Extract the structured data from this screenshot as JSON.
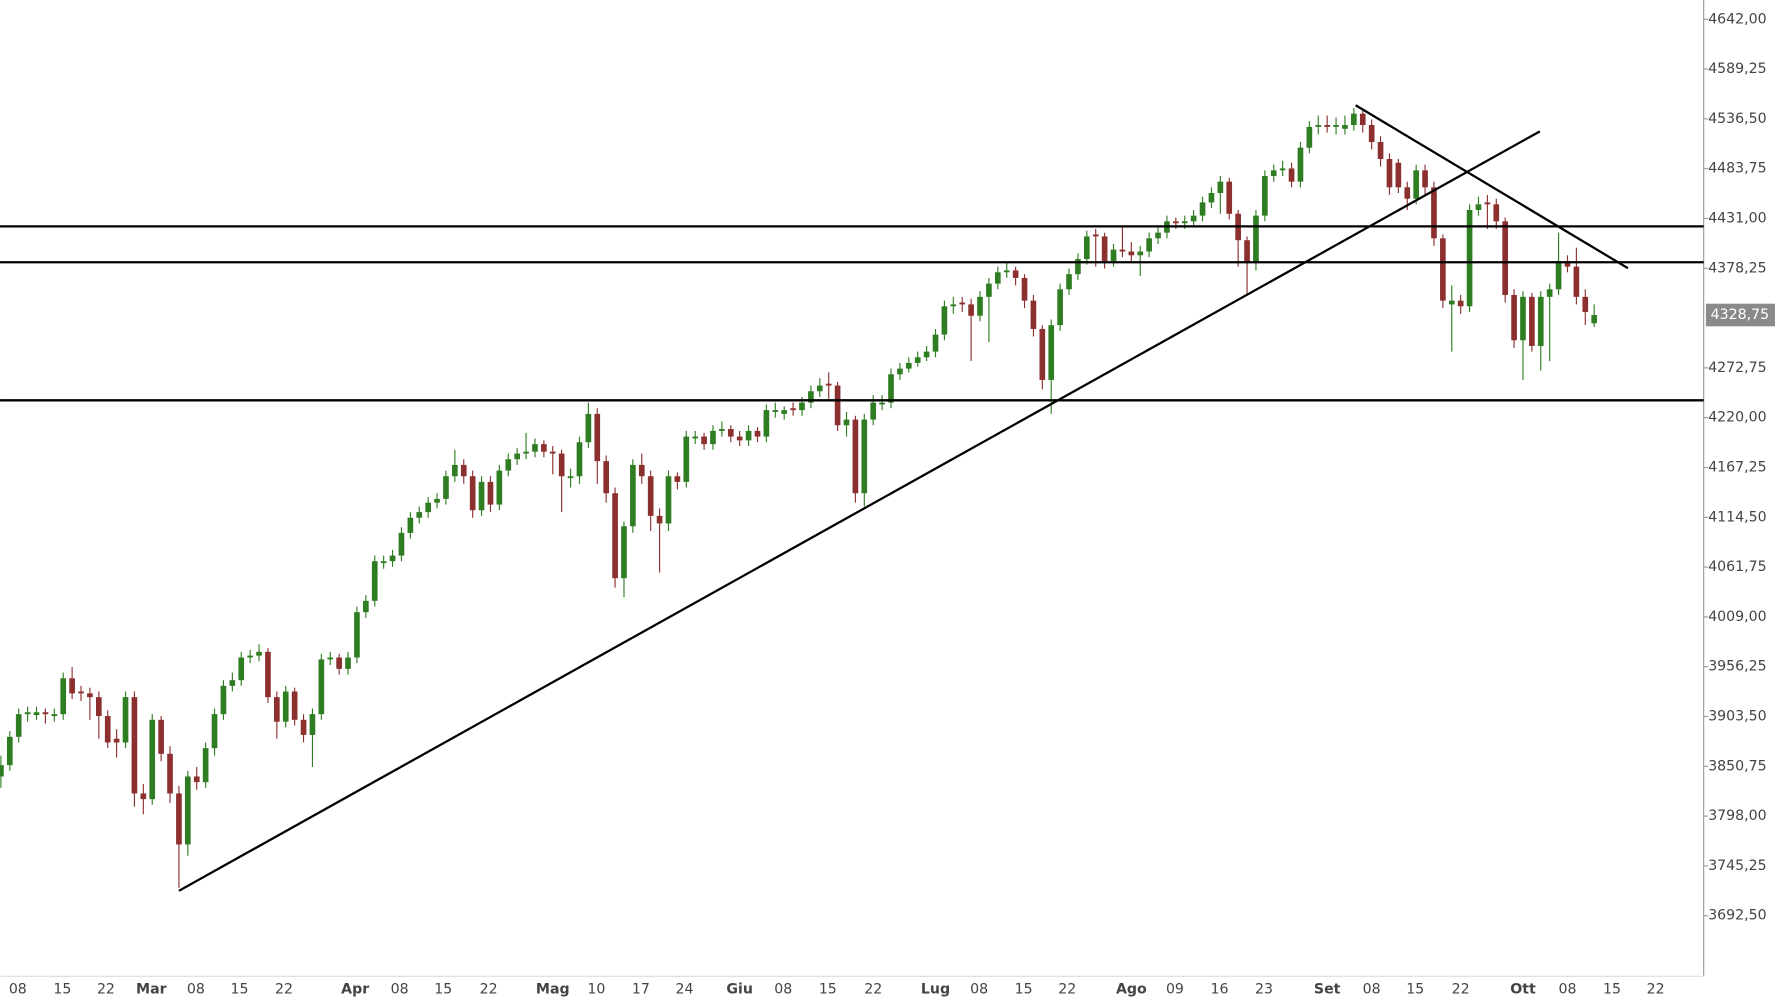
{
  "chart_data": {
    "type": "candlestick",
    "up_color": "#2f7d22",
    "down_color": "#8c2f2f",
    "line_color": "#000000",
    "xlim": [
      -0.1,
      191.3
    ],
    "ylim": [
      3628.9,
      4662.4
    ],
    "yticks": [
      {
        "value": 4642,
        "label": "4642,00"
      },
      {
        "value": 4589.25,
        "label": "4589,25"
      },
      {
        "value": 4536.5,
        "label": "4536,50"
      },
      {
        "value": 4483.75,
        "label": "4483,75"
      },
      {
        "value": 4431,
        "label": "4431,00"
      },
      {
        "value": 4378.25,
        "label": "4378,25"
      },
      {
        "value": 4272.75,
        "label": "4272,75"
      },
      {
        "value": 4220,
        "label": "4220,00"
      },
      {
        "value": 4167.25,
        "label": "4167,25"
      },
      {
        "value": 4114.5,
        "label": "4114,50"
      },
      {
        "value": 4061.75,
        "label": "4061,75"
      },
      {
        "value": 4009,
        "label": "4009,00"
      },
      {
        "value": 3956.25,
        "label": "3956,25"
      },
      {
        "value": 3903.5,
        "label": "3903,50"
      },
      {
        "value": 3850.75,
        "label": "3850,75"
      },
      {
        "value": 3798,
        "label": "3798,00"
      },
      {
        "value": 3745.25,
        "label": "3745,25"
      },
      {
        "value": 3692.5,
        "label": "3692,50"
      }
    ],
    "xticks": [
      {
        "value": 1.9,
        "label": "08"
      },
      {
        "value": 6.9,
        "label": "15"
      },
      {
        "value": 11.8,
        "label": "22"
      },
      {
        "value": 16.9,
        "label": "Mar"
      },
      {
        "value": 21.9,
        "label": "08"
      },
      {
        "value": 26.8,
        "label": "15"
      },
      {
        "value": 31.8,
        "label": "22"
      },
      {
        "value": 39.8,
        "label": "Apr"
      },
      {
        "value": 44.8,
        "label": "08"
      },
      {
        "value": 49.7,
        "label": "15"
      },
      {
        "value": 54.8,
        "label": "22"
      },
      {
        "value": 62.0,
        "label": "Mag"
      },
      {
        "value": 66.9,
        "label": "10"
      },
      {
        "value": 71.9,
        "label": "17"
      },
      {
        "value": 76.8,
        "label": "24"
      },
      {
        "value": 83.0,
        "label": "Giu"
      },
      {
        "value": 87.9,
        "label": "08"
      },
      {
        "value": 92.9,
        "label": "15"
      },
      {
        "value": 98.0,
        "label": "22"
      },
      {
        "value": 105.0,
        "label": "Lug"
      },
      {
        "value": 109.9,
        "label": "08"
      },
      {
        "value": 114.9,
        "label": "15"
      },
      {
        "value": 119.8,
        "label": "22"
      },
      {
        "value": 127.0,
        "label": "Ago"
      },
      {
        "value": 131.9,
        "label": "09"
      },
      {
        "value": 136.9,
        "label": "16"
      },
      {
        "value": 141.9,
        "label": "23"
      },
      {
        "value": 149.0,
        "label": "Set"
      },
      {
        "value": 154.0,
        "label": "08"
      },
      {
        "value": 158.9,
        "label": "15"
      },
      {
        "value": 164.0,
        "label": "22"
      },
      {
        "value": 171.0,
        "label": "Ott"
      },
      {
        "value": 176.0,
        "label": "08"
      },
      {
        "value": 181.0,
        "label": "15"
      },
      {
        "value": 185.9,
        "label": "22"
      }
    ],
    "month_labels": [
      "Mar",
      "Apr",
      "Mag",
      "Giu",
      "Lug",
      "Ago",
      "Set",
      "Ott"
    ],
    "last_price": {
      "value": 4328.75,
      "label": "4328,75"
    },
    "hlines": [
      4422.6,
      4384.6,
      4238.4
    ],
    "trendlines": [
      {
        "x": [
          20.0,
          172.9
        ],
        "y": [
          3718.9,
          4523.3
        ]
      },
      {
        "x": [
          152.2,
          182.8
        ],
        "y": [
          4550.9,
          4378.3
        ]
      }
    ],
    "candles": [
      [
        3840,
        3862,
        3828,
        3852
      ],
      [
        3852,
        3888,
        3846,
        3882
      ],
      [
        3882,
        3912,
        3876,
        3906
      ],
      [
        3906,
        3914,
        3898,
        3908
      ],
      [
        3905,
        3914,
        3900,
        3908
      ],
      [
        3908,
        3912,
        3896,
        3906
      ],
      [
        3904,
        3912,
        3898,
        3906
      ],
      [
        3906,
        3950,
        3900,
        3944
      ],
      [
        3944,
        3956,
        3922,
        3928
      ],
      [
        3930,
        3936,
        3920,
        3928
      ],
      [
        3928,
        3934,
        3900,
        3924
      ],
      [
        3924,
        3930,
        3880,
        3904
      ],
      [
        3904,
        3910,
        3870,
        3876
      ],
      [
        3880,
        3890,
        3860,
        3876
      ],
      [
        3876,
        3930,
        3870,
        3924
      ],
      [
        3924,
        3930,
        3808,
        3822
      ],
      [
        3822,
        3832,
        3800,
        3816
      ],
      [
        3816,
        3906,
        3810,
        3900
      ],
      [
        3900,
        3904,
        3856,
        3864
      ],
      [
        3864,
        3872,
        3812,
        3822
      ],
      [
        3822,
        3830,
        3722,
        3768
      ],
      [
        3768,
        3846,
        3756,
        3840
      ],
      [
        3840,
        3850,
        3826,
        3834
      ],
      [
        3834,
        3876,
        3828,
        3870
      ],
      [
        3870,
        3912,
        3862,
        3906
      ],
      [
        3906,
        3942,
        3900,
        3936
      ],
      [
        3936,
        3950,
        3930,
        3942
      ],
      [
        3942,
        3972,
        3936,
        3966
      ],
      [
        3966,
        3974,
        3960,
        3968
      ],
      [
        3968,
        3980,
        3962,
        3972
      ],
      [
        3972,
        3976,
        3918,
        3924
      ],
      [
        3924,
        3930,
        3880,
        3898
      ],
      [
        3898,
        3936,
        3892,
        3930
      ],
      [
        3930,
        3934,
        3894,
        3900
      ],
      [
        3900,
        3906,
        3876,
        3884
      ],
      [
        3884,
        3912,
        3850,
        3906
      ],
      [
        3906,
        3970,
        3900,
        3964
      ],
      [
        3964,
        3972,
        3958,
        3966
      ],
      [
        3966,
        3970,
        3948,
        3954
      ],
      [
        3954,
        3972,
        3948,
        3966
      ],
      [
        3966,
        4020,
        3960,
        4014
      ],
      [
        4014,
        4032,
        4008,
        4026
      ],
      [
        4026,
        4074,
        4020,
        4068
      ],
      [
        4066,
        4074,
        4060,
        4068
      ],
      [
        4068,
        4080,
        4062,
        4074
      ],
      [
        4074,
        4104,
        4068,
        4098
      ],
      [
        4098,
        4120,
        4092,
        4114
      ],
      [
        4114,
        4126,
        4108,
        4120
      ],
      [
        4120,
        4136,
        4114,
        4130
      ],
      [
        4130,
        4140,
        4124,
        4134
      ],
      [
        4134,
        4164,
        4128,
        4158
      ],
      [
        4158,
        4186,
        4152,
        4170
      ],
      [
        4170,
        4176,
        4150,
        4158
      ],
      [
        4158,
        4164,
        4114,
        4122
      ],
      [
        4122,
        4158,
        4116,
        4152
      ],
      [
        4152,
        4158,
        4120,
        4128
      ],
      [
        4128,
        4170,
        4122,
        4164
      ],
      [
        4164,
        4182,
        4158,
        4176
      ],
      [
        4176,
        4188,
        4170,
        4182
      ],
      [
        4182,
        4204,
        4176,
        4184
      ],
      [
        4184,
        4198,
        4178,
        4192
      ],
      [
        4192,
        4196,
        4178,
        4184
      ],
      [
        4184,
        4190,
        4160,
        4182
      ],
      [
        4182,
        4186,
        4120,
        4158
      ],
      [
        4156,
        4166,
        4146,
        4158
      ],
      [
        4158,
        4200,
        4150,
        4194
      ],
      [
        4194,
        4236,
        4188,
        4224
      ],
      [
        4224,
        4230,
        4150,
        4174
      ],
      [
        4174,
        4180,
        4130,
        4140
      ],
      [
        4140,
        4146,
        4040,
        4050
      ],
      [
        4050,
        4110,
        4030,
        4105
      ],
      [
        4105,
        4176,
        4098,
        4170
      ],
      [
        4170,
        4182,
        4150,
        4158
      ],
      [
        4158,
        4164,
        4100,
        4116
      ],
      [
        4116,
        4124,
        4056,
        4108
      ],
      [
        4108,
        4164,
        4100,
        4158
      ],
      [
        4158,
        4162,
        4144,
        4152
      ],
      [
        4152,
        4206,
        4146,
        4200
      ],
      [
        4198,
        4206,
        4192,
        4200
      ],
      [
        4200,
        4204,
        4186,
        4192
      ],
      [
        4192,
        4212,
        4186,
        4206
      ],
      [
        4206,
        4216,
        4200,
        4208
      ],
      [
        4208,
        4212,
        4194,
        4200
      ],
      [
        4200,
        4206,
        4190,
        4196
      ],
      [
        4196,
        4212,
        4190,
        4206
      ],
      [
        4206,
        4210,
        4194,
        4200
      ],
      [
        4200,
        4234,
        4194,
        4228
      ],
      [
        4226,
        4236,
        4220,
        4228
      ],
      [
        4224,
        4232,
        4218,
        4228
      ],
      [
        4230,
        4236,
        4222,
        4228
      ],
      [
        4228,
        4242,
        4222,
        4236
      ],
      [
        4236,
        4254,
        4230,
        4248
      ],
      [
        4248,
        4262,
        4242,
        4254
      ],
      [
        4256,
        4268,
        4240,
        4254
      ],
      [
        4254,
        4258,
        4206,
        4212
      ],
      [
        4212,
        4226,
        4200,
        4218
      ],
      [
        4218,
        4222,
        4130,
        4140
      ],
      [
        4140,
        4224,
        4126,
        4218
      ],
      [
        4218,
        4244,
        4212,
        4236
      ],
      [
        4234,
        4244,
        4228,
        4236
      ],
      [
        4236,
        4272,
        4230,
        4266
      ],
      [
        4266,
        4278,
        4260,
        4272
      ],
      [
        4272,
        4284,
        4268,
        4278
      ],
      [
        4278,
        4290,
        4274,
        4284
      ],
      [
        4284,
        4296,
        4280,
        4290
      ],
      [
        4290,
        4314,
        4284,
        4308
      ],
      [
        4308,
        4344,
        4302,
        4338
      ],
      [
        4338,
        4348,
        4330,
        4340
      ],
      [
        4342,
        4348,
        4332,
        4340
      ],
      [
        4340,
        4346,
        4280,
        4328
      ],
      [
        4328,
        4354,
        4322,
        4348
      ],
      [
        4348,
        4368,
        4300,
        4362
      ],
      [
        4362,
        4380,
        4356,
        4374
      ],
      [
        4374,
        4384,
        4368,
        4376
      ],
      [
        4376,
        4380,
        4360,
        4368
      ],
      [
        4368,
        4372,
        4336,
        4344
      ],
      [
        4344,
        4350,
        4306,
        4314
      ],
      [
        4314,
        4318,
        4250,
        4260
      ],
      [
        4260,
        4324,
        4224,
        4318
      ],
      [
        4318,
        4362,
        4312,
        4356
      ],
      [
        4356,
        4378,
        4350,
        4372
      ],
      [
        4372,
        4394,
        4366,
        4388
      ],
      [
        4388,
        4418,
        4382,
        4412
      ],
      [
        4414,
        4420,
        4380,
        4412
      ],
      [
        4412,
        4416,
        4378,
        4386
      ],
      [
        4386,
        4404,
        4380,
        4398
      ],
      [
        4398,
        4422,
        4390,
        4396
      ],
      [
        4396,
        4406,
        4384,
        4392
      ],
      [
        4392,
        4402,
        4370,
        4396
      ],
      [
        4396,
        4416,
        4390,
        4410
      ],
      [
        4410,
        4422,
        4404,
        4416
      ],
      [
        4416,
        4434,
        4410,
        4428
      ],
      [
        4428,
        4432,
        4420,
        4426
      ],
      [
        4426,
        4434,
        4420,
        4428
      ],
      [
        4428,
        4440,
        4424,
        4434
      ],
      [
        4434,
        4454,
        4428,
        4448
      ],
      [
        4448,
        4464,
        4442,
        4458
      ],
      [
        4458,
        4476,
        4436,
        4470
      ],
      [
        4470,
        4474,
        4430,
        4436
      ],
      [
        4436,
        4440,
        4380,
        4408
      ],
      [
        4408,
        4412,
        4350,
        4384
      ],
      [
        4384,
        4440,
        4376,
        4434
      ],
      [
        4434,
        4482,
        4428,
        4476
      ],
      [
        4476,
        4488,
        4470,
        4482
      ],
      [
        4482,
        4492,
        4476,
        4484
      ],
      [
        4484,
        4490,
        4464,
        4470
      ],
      [
        4470,
        4512,
        4464,
        4506
      ],
      [
        4506,
        4534,
        4500,
        4528
      ],
      [
        4528,
        4540,
        4520,
        4530
      ],
      [
        4530,
        4540,
        4522,
        4528
      ],
      [
        4528,
        4538,
        4520,
        4530
      ],
      [
        4526,
        4540,
        4520,
        4530
      ],
      [
        4530,
        4548,
        4524,
        4542
      ],
      [
        4542,
        4546,
        4522,
        4530
      ],
      [
        4530,
        4536,
        4504,
        4512
      ],
      [
        4512,
        4518,
        4486,
        4494
      ],
      [
        4494,
        4500,
        4456,
        4464
      ],
      [
        4490,
        4494,
        4458,
        4464
      ],
      [
        4464,
        4470,
        4440,
        4452
      ],
      [
        4452,
        4488,
        4446,
        4482
      ],
      [
        4482,
        4488,
        4456,
        4464
      ],
      [
        4464,
        4470,
        4402,
        4410
      ],
      [
        4410,
        4414,
        4336,
        4344
      ],
      [
        4340,
        4360,
        4290,
        4344
      ],
      [
        4344,
        4350,
        4330,
        4338
      ],
      [
        4338,
        4446,
        4332,
        4440
      ],
      [
        4440,
        4454,
        4434,
        4446
      ],
      [
        4448,
        4456,
        4420,
        4446
      ],
      [
        4446,
        4452,
        4420,
        4428
      ],
      [
        4428,
        4432,
        4342,
        4350
      ],
      [
        4350,
        4356,
        4294,
        4302
      ],
      [
        4302,
        4354,
        4260,
        4348
      ],
      [
        4348,
        4352,
        4290,
        4296
      ],
      [
        4296,
        4354,
        4270,
        4348
      ],
      [
        4348,
        4362,
        4280,
        4356
      ],
      [
        4356,
        4416,
        4350,
        4386
      ],
      [
        4386,
        4392,
        4374,
        4380
      ],
      [
        4380,
        4400,
        4340,
        4348
      ],
      [
        4348,
        4356,
        4318,
        4332
      ],
      [
        4320,
        4340,
        4316,
        4328.75
      ]
    ]
  }
}
